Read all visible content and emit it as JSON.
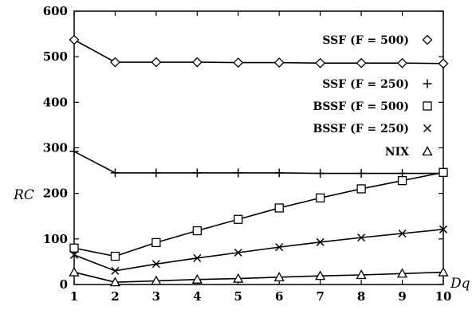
{
  "chart_data": {
    "type": "line",
    "title": "",
    "xlabel": "Dq",
    "ylabel": "RC",
    "x": [
      1,
      2,
      3,
      4,
      5,
      6,
      7,
      8,
      9,
      10
    ],
    "xlim": [
      1,
      10
    ],
    "ylim": [
      0,
      600
    ],
    "xticks": [
      "1",
      "2",
      "3",
      "4",
      "5",
      "6",
      "7",
      "8",
      "9",
      "10"
    ],
    "yticks": [
      "0",
      "100",
      "200",
      "300",
      "400",
      "500",
      "600"
    ],
    "grid": false,
    "legend_position": "right",
    "series": [
      {
        "name": "SSF (F = 500)",
        "marker": "diamond",
        "values": [
          537,
          488,
          488,
          488,
          487,
          487,
          486,
          486,
          486,
          485
        ]
      },
      {
        "name": "SSF (F = 250)",
        "marker": "plus",
        "values": [
          292,
          245,
          245,
          245,
          245,
          245,
          244,
          244,
          244,
          244
        ]
      },
      {
        "name": "BSSF (F = 500)",
        "marker": "square",
        "values": [
          80,
          62,
          92,
          118,
          143,
          168,
          190,
          210,
          228,
          246
        ]
      },
      {
        "name": "BSSF (F = 250)",
        "marker": "cross",
        "values": [
          65,
          30,
          45,
          58,
          70,
          82,
          93,
          103,
          112,
          121
        ]
      },
      {
        "name": "NIX",
        "marker": "triangle",
        "values": [
          27,
          5,
          8,
          11,
          13,
          16,
          19,
          21,
          24,
          27
        ]
      }
    ]
  }
}
